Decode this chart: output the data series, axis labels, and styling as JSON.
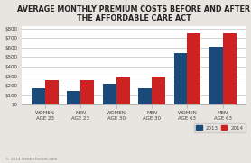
{
  "title": "AVERAGE MONTHLY PREMIUM COSTS BEFORE AND AFTER\nTHE AFFORDABLE CARE ACT",
  "categories": [
    "WOMEN\nAGE 23",
    "MEN\nAGE 23",
    "WOMEN\nAGE 30",
    "MEN\nAGE 30",
    "WOMEN\nAGE 63",
    "MEN\nAGE 63"
  ],
  "values_2013": [
    175,
    145,
    215,
    168,
    545,
    605
  ],
  "values_2014": [
    262,
    262,
    290,
    293,
    750,
    750
  ],
  "color_2013": "#1a4a7a",
  "color_2014": "#cc2222",
  "ylabel_ticks": [
    0,
    100,
    200,
    300,
    400,
    500,
    600,
    700,
    800
  ],
  "ylim": [
    0,
    830
  ],
  "background_color": "#e8e4df",
  "plot_bg_color": "#ffffff",
  "grid_color": "#cccccc",
  "legend_labels": [
    "2013",
    "2014"
  ],
  "footnote": "© 2014 HealthPocket.com",
  "title_fontsize": 5.8,
  "tick_fontsize": 4.0,
  "bar_width": 0.38
}
